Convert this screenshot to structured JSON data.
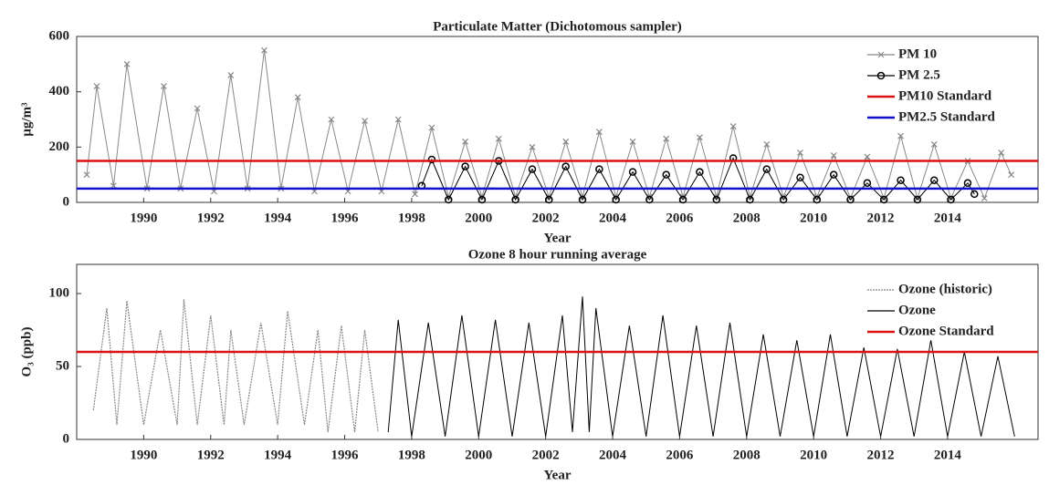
{
  "chart_data": [
    {
      "type": "line",
      "title": "Particulate Matter (Dichotomous sampler)",
      "xlabel": "Year",
      "ylabel": "μg/m³",
      "xlim": [
        1988,
        2016.7
      ],
      "xticks": [
        1990,
        1992,
        1994,
        1996,
        1998,
        2000,
        2002,
        2004,
        2006,
        2008,
        2010,
        2012,
        2014
      ],
      "ylim": [
        0,
        600
      ],
      "yticks": [
        0,
        200,
        400,
        600
      ],
      "series": [
        {
          "name": "PM 10",
          "color": "#888888",
          "marker": "x",
          "style": "solid",
          "x": [
            1988.3,
            1988.6,
            1989.1,
            1989.5,
            1990.1,
            1990.6,
            1991.1,
            1991.6,
            1992.1,
            1992.6,
            1993.1,
            1993.6,
            1994.1,
            1994.6,
            1995.1,
            1995.6,
            1996.1,
            1996.6,
            1997.1,
            1997.6,
            1998.1,
            1998.6,
            1999.1,
            1999.6,
            2000.1,
            2000.6,
            2001.1,
            2001.6,
            2002.1,
            2002.6,
            2003.1,
            2003.6,
            2004.1,
            2004.6,
            2005.1,
            2005.6,
            2006.1,
            2006.6,
            2007.1,
            2007.6,
            2008.1,
            2008.6,
            2009.1,
            2009.6,
            2010.1,
            2010.6,
            2011.1,
            2011.6,
            2012.1,
            2012.6,
            2013.1,
            2013.6,
            2014.1,
            2014.6,
            2015.1,
            2015.6,
            2015.9
          ],
          "values": [
            100,
            420,
            60,
            500,
            50,
            420,
            50,
            340,
            40,
            460,
            50,
            550,
            50,
            380,
            40,
            300,
            40,
            295,
            40,
            300,
            30,
            270,
            20,
            220,
            20,
            230,
            20,
            200,
            20,
            220,
            20,
            255,
            20,
            220,
            20,
            230,
            20,
            235,
            20,
            275,
            20,
            210,
            20,
            180,
            20,
            170,
            15,
            165,
            15,
            240,
            15,
            210,
            15,
            150,
            15,
            180,
            100
          ]
        },
        {
          "name": "PM 2.5",
          "color": "#000000",
          "marker": "circle",
          "style": "solid",
          "x": [
            1998.3,
            1998.6,
            1999.1,
            1999.6,
            2000.1,
            2000.6,
            2001.1,
            2001.6,
            2002.1,
            2002.6,
            2003.1,
            2003.6,
            2004.1,
            2004.6,
            2005.1,
            2005.6,
            2006.1,
            2006.6,
            2007.1,
            2007.6,
            2008.1,
            2008.6,
            2009.1,
            2009.6,
            2010.1,
            2010.6,
            2011.1,
            2011.6,
            2012.1,
            2012.6,
            2013.1,
            2013.6,
            2014.1,
            2014.6,
            2014.8
          ],
          "values": [
            60,
            155,
            10,
            130,
            10,
            150,
            10,
            120,
            10,
            130,
            10,
            120,
            10,
            110,
            10,
            100,
            10,
            110,
            10,
            160,
            10,
            120,
            10,
            90,
            10,
            100,
            10,
            70,
            10,
            80,
            10,
            80,
            10,
            70,
            30
          ]
        }
      ],
      "reference_lines": [
        {
          "name": "PM10 Standard",
          "color": "#dd1111",
          "value": 150
        },
        {
          "name": "PM2.5 Standard",
          "color": "#1111cc",
          "value": 50
        }
      ]
    },
    {
      "type": "line",
      "title": "Ozone 8 hour running average",
      "xlabel": "Year",
      "ylabel": "O₃ (ppb)",
      "xlim": [
        1988,
        2016.7
      ],
      "xticks": [
        1990,
        1992,
        1994,
        1996,
        1998,
        2000,
        2002,
        2004,
        2006,
        2008,
        2010,
        2012,
        2014
      ],
      "ylim": [
        0,
        120
      ],
      "yticks": [
        0,
        50,
        100
      ],
      "series": [
        {
          "name": "Ozone (historic)",
          "color": "#888888",
          "marker": "none",
          "style": "dotted",
          "x": [
            1988.5,
            1988.9,
            1989.2,
            1989.5,
            1990.0,
            1990.5,
            1991.0,
            1991.2,
            1991.6,
            1992.0,
            1992.4,
            1992.6,
            1993.0,
            1993.5,
            1994.0,
            1994.3,
            1994.8,
            1995.2,
            1995.5,
            1995.9,
            1996.3,
            1996.6,
            1997.0
          ],
          "values": [
            20,
            90,
            10,
            95,
            10,
            75,
            10,
            96,
            10,
            85,
            10,
            75,
            10,
            80,
            10,
            88,
            10,
            75,
            5,
            78,
            5,
            75,
            5
          ]
        },
        {
          "name": "Ozone",
          "color": "#000000",
          "marker": "none",
          "style": "solid",
          "x": [
            1997.3,
            1997.6,
            1998.0,
            1998.5,
            1999.0,
            1999.5,
            2000.0,
            2000.5,
            2001.0,
            2001.5,
            2002.0,
            2002.5,
            2002.8,
            2003.1,
            2003.3,
            2003.5,
            2004.0,
            2004.5,
            2005.0,
            2005.5,
            2006.0,
            2006.5,
            2007.0,
            2007.5,
            2008.0,
            2008.5,
            2009.0,
            2009.5,
            2010.0,
            2010.5,
            2011.0,
            2011.5,
            2012.0,
            2012.5,
            2013.0,
            2013.5,
            2014.0,
            2014.5,
            2015.0,
            2015.5,
            2016.0
          ],
          "values": [
            5,
            82,
            2,
            80,
            2,
            85,
            2,
            82,
            2,
            80,
            2,
            85,
            5,
            98,
            5,
            90,
            2,
            78,
            2,
            85,
            2,
            78,
            2,
            80,
            2,
            72,
            2,
            68,
            2,
            72,
            2,
            63,
            2,
            62,
            2,
            68,
            2,
            60,
            2,
            57,
            2
          ]
        }
      ],
      "reference_lines": [
        {
          "name": "Ozone Standard",
          "color": "#dd1111",
          "value": 60
        }
      ]
    }
  ]
}
